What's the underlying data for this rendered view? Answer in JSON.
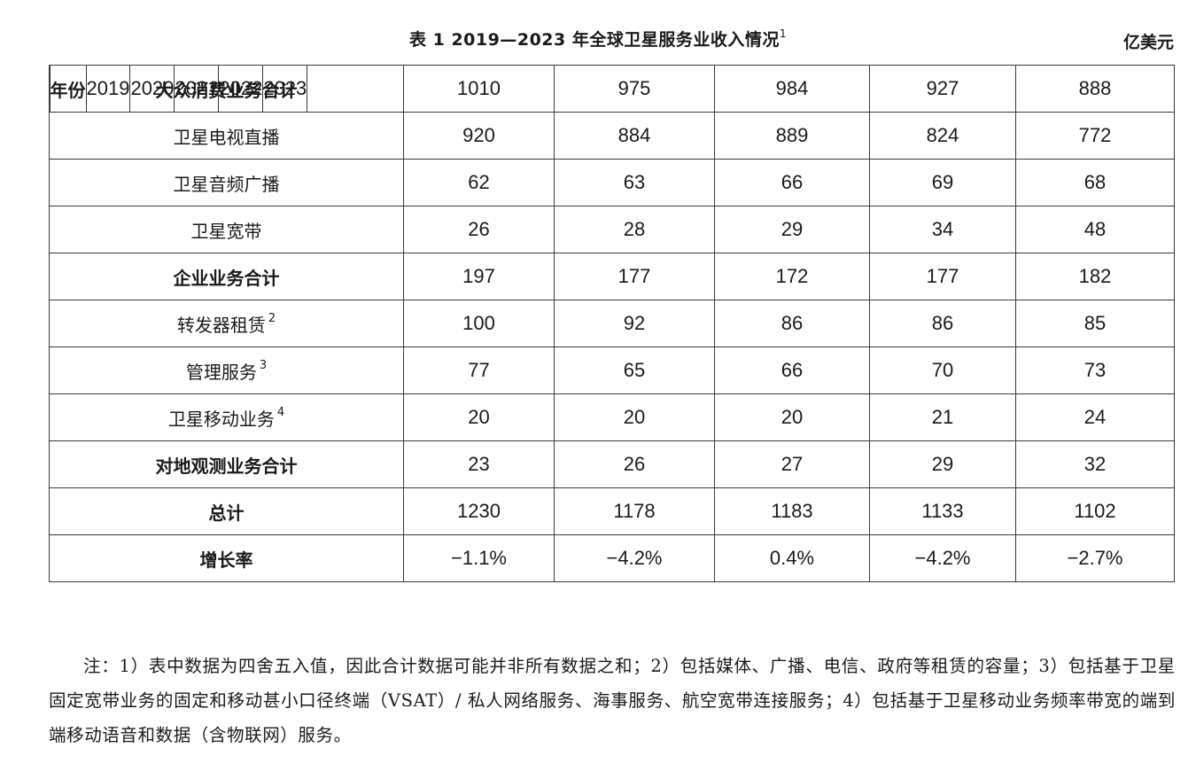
{
  "table": {
    "title": "表 1  2019—2023 年全球卫星服务业收入情况",
    "title_note": "1",
    "unit": "亿美元",
    "header": {
      "label": "年份",
      "years": [
        "2019",
        "2020",
        "2021",
        "2022",
        "2023"
      ]
    },
    "rows": [
      {
        "label": "大众消费业务合计",
        "sup": "",
        "bold": true,
        "values": [
          "1010",
          "975",
          "984",
          "927",
          "888"
        ]
      },
      {
        "label": "卫星电视直播",
        "sup": "",
        "bold": false,
        "values": [
          "920",
          "884",
          "889",
          "824",
          "772"
        ]
      },
      {
        "label": "卫星音频广播",
        "sup": "",
        "bold": false,
        "values": [
          "62",
          "63",
          "66",
          "69",
          "68"
        ]
      },
      {
        "label": "卫星宽带",
        "sup": "",
        "bold": false,
        "values": [
          "26",
          "28",
          "29",
          "34",
          "48"
        ]
      },
      {
        "label": "企业业务合计",
        "sup": "",
        "bold": true,
        "values": [
          "197",
          "177",
          "172",
          "177",
          "182"
        ]
      },
      {
        "label": "转发器租赁",
        "sup": "2",
        "bold": false,
        "values": [
          "100",
          "92",
          "86",
          "86",
          "85"
        ]
      },
      {
        "label": "管理服务",
        "sup": "3",
        "bold": false,
        "values": [
          "77",
          "65",
          "66",
          "70",
          "73"
        ]
      },
      {
        "label": "卫星移动业务",
        "sup": "4",
        "bold": false,
        "values": [
          "20",
          "20",
          "20",
          "21",
          "24"
        ]
      },
      {
        "label": "对地观测业务合计",
        "sup": "",
        "bold": true,
        "values": [
          "23",
          "26",
          "27",
          "29",
          "32"
        ]
      },
      {
        "label": "总计",
        "sup": "",
        "bold": true,
        "values": [
          "1230",
          "1178",
          "1183",
          "1133",
          "1102"
        ]
      },
      {
        "label": "增长率",
        "sup": "",
        "bold": true,
        "values": [
          "−1.1%",
          "−4.2%",
          "0.4%",
          "−4.2%",
          "−2.7%"
        ]
      }
    ]
  },
  "notes": "注：1）表中数据为四舍五入值，因此合计数据可能并非所有数据之和；2）包括媒体、广播、电信、政府等租赁的容量；3）包括基于卫星固定宽带业务的固定和移动甚小口径终端（VSAT）/ 私人网络服务、海事服务、航空宽带连接服务；4）包括基于卫星移动业务频率带宽的端到端移动语音和数据（含物联网）服务。"
}
